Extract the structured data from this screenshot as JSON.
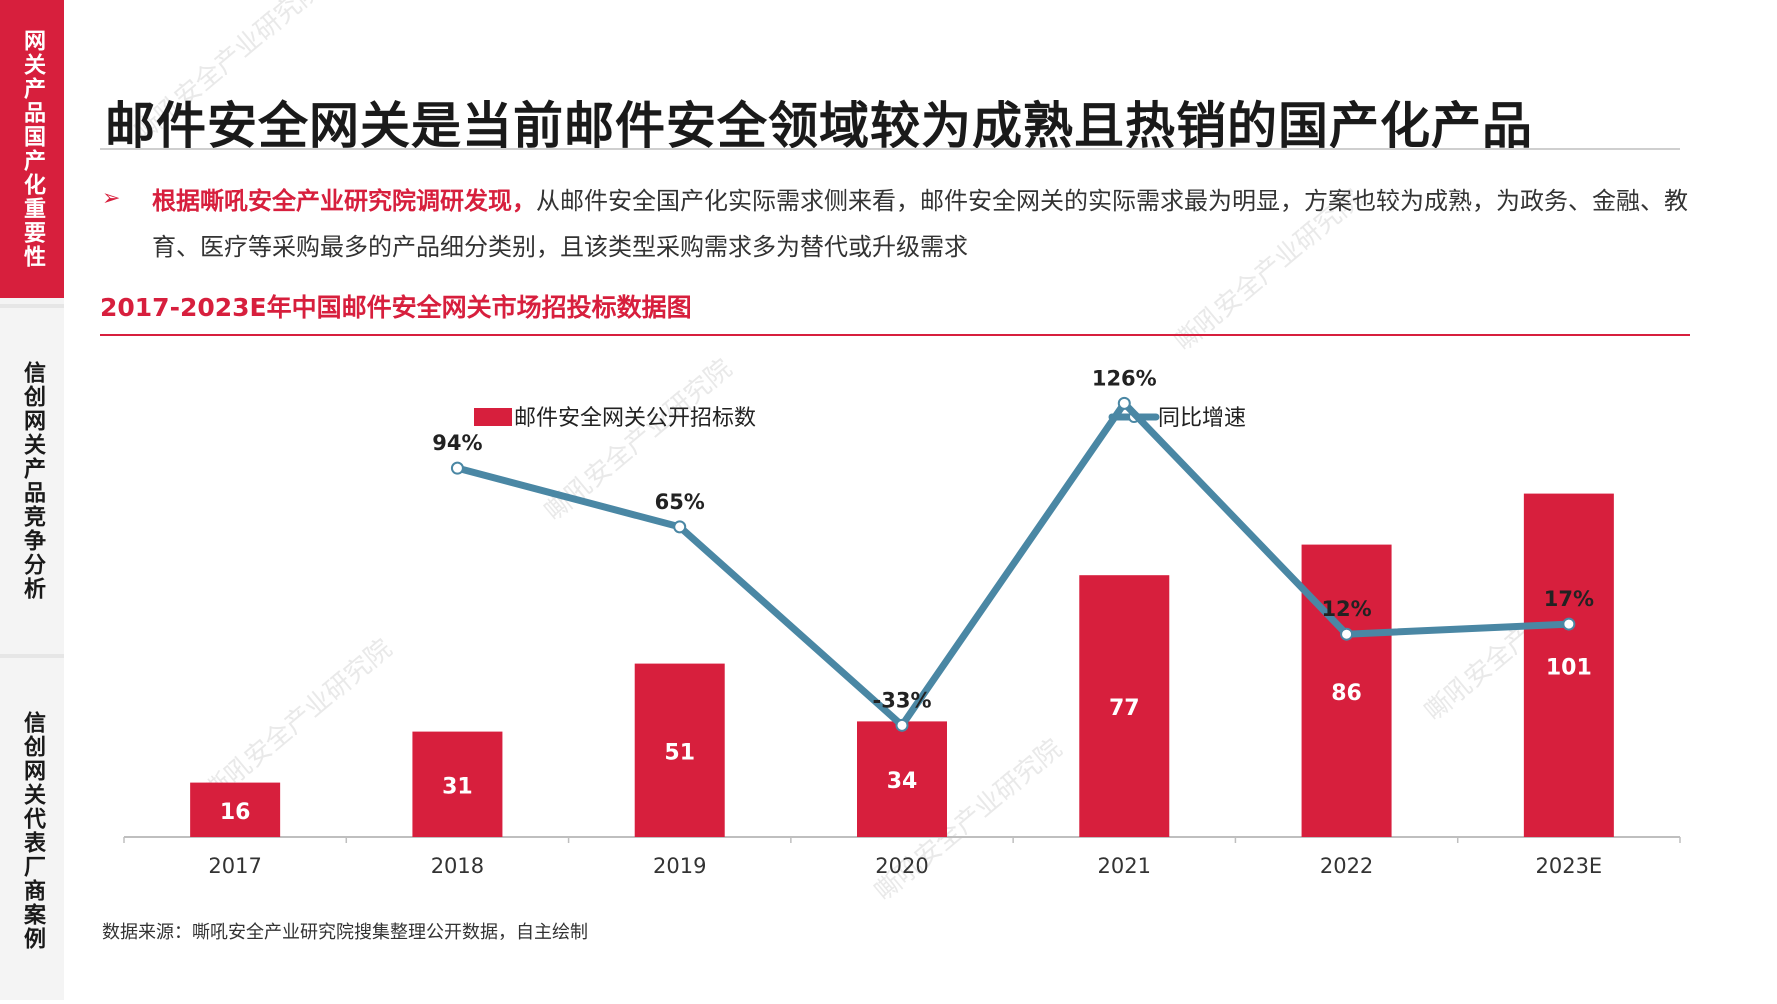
{
  "sidebar": {
    "items": [
      {
        "label": "网关产品国产化重要性"
      },
      {
        "label": "信创网关产品竞争分析"
      },
      {
        "label": "信创网关代表厂商案例"
      }
    ]
  },
  "page": {
    "title": "邮件安全网关是当前邮件安全领域较为成熟且热销的国产化产品",
    "bullet": "➢",
    "highlight": "根据嘶吼安全产业研究院调研发现，",
    "description": "从邮件安全国产化实际需求侧来看，邮件安全网关的实际需求最为明显，方案也较为成熟，为政务、金融、教育、医疗等采购最多的产品细分类别，且该类型采购需求多为替代或升级需求",
    "chart_title": "2017-2023E年中国邮件安全网关市场招投标数据图",
    "source": "数据来源：嘶吼安全产业研究院搜集整理公开数据，自主绘制"
  },
  "colors": {
    "accent": "#d71f3d",
    "line": "#4a87a4"
  },
  "chart_data": {
    "type": "bar",
    "categories": [
      "2017",
      "2018",
      "2019",
      "2020",
      "2021",
      "2022",
      "2023E"
    ],
    "series": [
      {
        "name": "邮件安全网关公开招标数",
        "type": "bar",
        "values": [
          16,
          31,
          51,
          34,
          77,
          86,
          101
        ],
        "labels": [
          "16",
          "31",
          "51",
          "34",
          "77",
          "86",
          "101"
        ]
      },
      {
        "name": "同比增速",
        "type": "line",
        "values": [
          null,
          94,
          65,
          -33,
          126,
          12,
          17
        ],
        "labels": [
          "",
          "94%",
          "65%",
          "-33%",
          "126%",
          "12%",
          "17%"
        ]
      }
    ],
    "legend_position": "top",
    "ylim_bar": [
      0,
      105
    ],
    "ylim_line": [
      -60,
      140
    ]
  }
}
